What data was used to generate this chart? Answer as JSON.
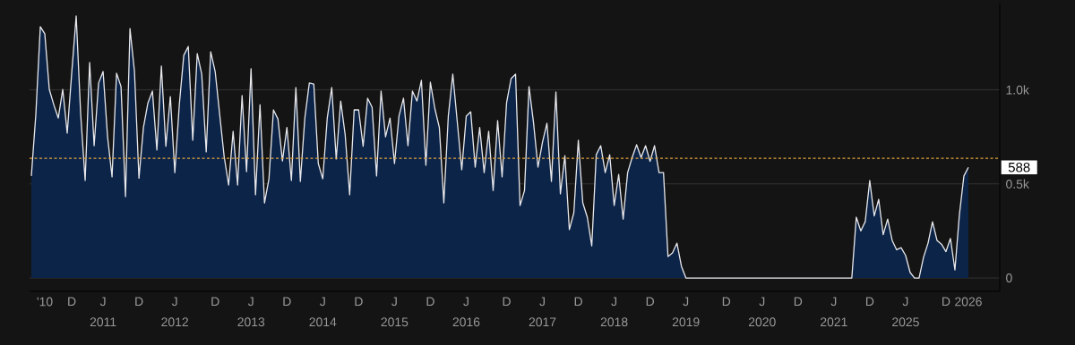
{
  "chart_data": {
    "type": "area",
    "color": "#0c2448",
    "categories": [
      null,
      null,
      null,
      "'10",
      null,
      null,
      null,
      null,
      null,
      "D",
      null,
      null,
      null,
      null,
      null,
      null,
      "J 2011",
      null,
      null,
      null,
      null,
      null,
      null,
      null,
      "D",
      null,
      null,
      null,
      null,
      null,
      null,
      null,
      "J 2012",
      null,
      null,
      null,
      null,
      null,
      null,
      null,
      null,
      "D",
      null,
      null,
      null,
      null,
      null,
      null,
      null,
      "J 2013",
      null,
      null,
      null,
      null,
      null,
      null,
      null,
      "D",
      null,
      null,
      null,
      null,
      null,
      null,
      null,
      "J 2014",
      null,
      null,
      null,
      null,
      null,
      null,
      null,
      "D",
      null,
      null,
      null,
      null,
      null,
      null,
      null,
      "J 2015",
      null,
      null,
      null,
      null,
      null,
      null,
      null,
      "D",
      null,
      null,
      null,
      null,
      null,
      null,
      null,
      "J 2016",
      null,
      null,
      null,
      null,
      null,
      null,
      null,
      null,
      "D",
      null,
      null,
      null,
      null,
      null,
      null,
      null,
      "J 2017",
      null,
      null,
      null,
      null,
      null,
      null,
      null,
      "D",
      null,
      null,
      null,
      null,
      null,
      null,
      null,
      "J 2018",
      null,
      null,
      null,
      null,
      null,
      null,
      null,
      "D",
      null,
      null,
      null,
      null,
      null,
      null,
      null,
      "J 2019",
      null,
      null,
      null,
      null,
      null,
      null,
      null,
      null,
      "D",
      null,
      null,
      null,
      null,
      null,
      null,
      null,
      "J 2020",
      null,
      null,
      null,
      null,
      null,
      null,
      null,
      "D",
      null,
      null,
      null,
      null,
      null,
      null,
      null,
      "J 2021",
      null,
      null,
      null,
      null,
      null,
      null,
      null,
      "D",
      null,
      null,
      null,
      null,
      null,
      null,
      null,
      "J 2025",
      null,
      null,
      null,
      null,
      null,
      null,
      null,
      null,
      "D",
      null,
      null,
      null,
      null,
      "2026"
    ],
    "values": [
      542,
      869,
      1335,
      1297,
      1002,
      921,
      850,
      1002,
      770,
      1088,
      1392,
      870,
      518,
      1145,
      703,
      1036,
      1097,
      750,
      537,
      1088,
      1017,
      432,
      1325,
      1097,
      530,
      800,
      930,
      993,
      680,
      1126,
      700,
      964,
      560,
      921,
      1183,
      1230,
      732,
      1192,
      1083,
      670,
      1202,
      1097,
      870,
      646,
      494,
      779,
      494,
      969,
      565,
      1112,
      442,
      921,
      399,
      527,
      893,
      845,
      622,
      800,
      518,
      1012,
      513,
      850,
      1036,
      1030,
      608,
      527,
      850,
      1012,
      632,
      940,
      760,
      442,
      893,
      893,
      700,
      955,
      907,
      542,
      993,
      750,
      850,
      608,
      860,
      955,
      703,
      993,
      940,
      1050,
      599,
      1040,
      900,
      800,
      399,
      860,
      1083,
      830,
      575,
      860,
      883,
      589,
      800,
      560,
      780,
      465,
      836,
      537,
      931,
      1059,
      1083,
      385,
      465,
      1017,
      827,
      589,
      720,
      822,
      513,
      988,
      447,
      650,
      257,
      347,
      732,
      399,
      323,
      171,
      655,
      703,
      560,
      655,
      385,
      550,
      313,
      560,
      640,
      708,
      640,
      703,
      620,
      703,
      560,
      560,
      114,
      133,
      185,
      62,
      0,
      0,
      0,
      0,
      0,
      0,
      0,
      0,
      0,
      0,
      0,
      0,
      0,
      0,
      0,
      0,
      0,
      0,
      0,
      0,
      0,
      0,
      0,
      0,
      0,
      0,
      0,
      0,
      0,
      0,
      0,
      0,
      0,
      0,
      0,
      0,
      0,
      0,
      323,
      250,
      300,
      518,
      330,
      418,
      230,
      313,
      200,
      150,
      161,
      120,
      30,
      0,
      0,
      110,
      185,
      299,
      200,
      180,
      140,
      210,
      43,
      337,
      542,
      588
    ],
    "ylim": [
      -71,
      1458
    ],
    "yticks": [
      0,
      {
        "value": 500,
        "label": "0.5k"
      },
      {
        "value": 1000,
        "label": "1.0k"
      }
    ],
    "grid": "y",
    "ref_lines": [
      {
        "axis": "y",
        "value": 636,
        "color": "#e0a23c",
        "line_style": "dotted"
      }
    ],
    "annotations": [
      "588"
    ]
  }
}
